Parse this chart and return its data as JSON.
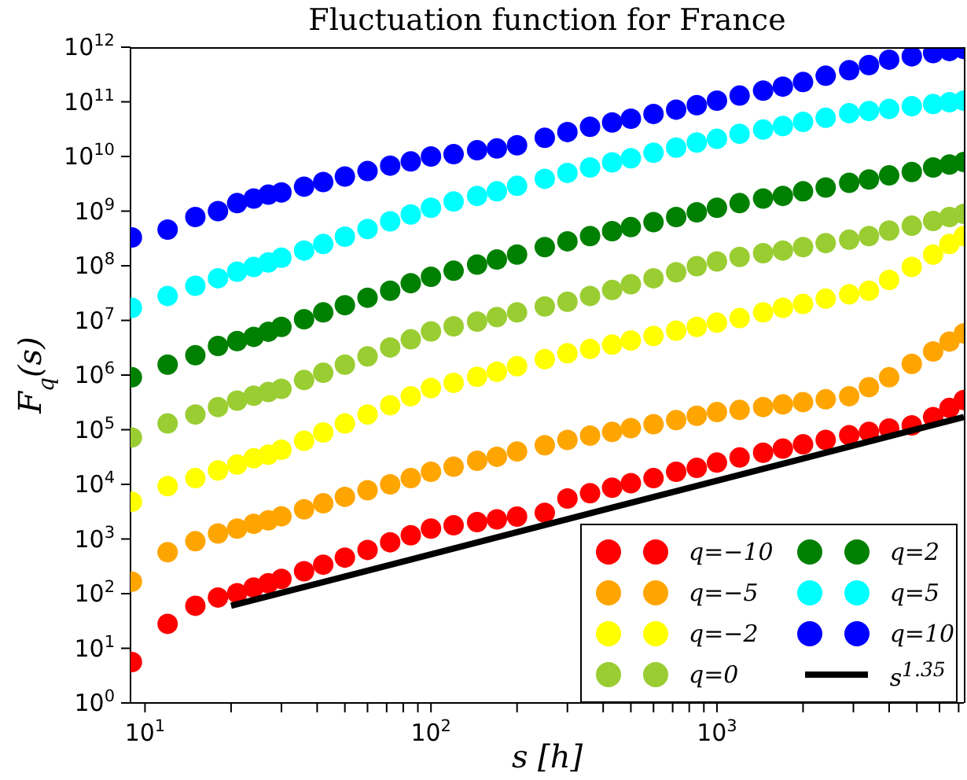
{
  "chart_data": {
    "type": "scatter",
    "title": "Fluctuation function for France",
    "xlabel": "s [h]",
    "ylabel": "F$_{q}$(s)",
    "log": "xy",
    "marker": "circle",
    "legend": "bottom right",
    "xlim": [
      8.9,
      7300
    ],
    "ylim": [
      1,
      1000000000000.0
    ],
    "xticks": [
      {
        "value": 10,
        "label": "10$^{1}$"
      },
      {
        "value": 20,
        "label": null
      },
      {
        "value": 30,
        "label": null
      },
      {
        "value": 40,
        "label": null
      },
      {
        "value": 50,
        "label": null
      },
      {
        "value": 60,
        "label": null
      },
      {
        "value": 70,
        "label": null
      },
      {
        "value": 80,
        "label": null
      },
      {
        "value": 90,
        "label": null
      },
      {
        "value": 100,
        "label": "10$^{2}$"
      },
      {
        "value": 200,
        "label": null
      },
      {
        "value": 300,
        "label": null
      },
      {
        "value": 400,
        "label": null
      },
      {
        "value": 500,
        "label": null
      },
      {
        "value": 600,
        "label": null
      },
      {
        "value": 700,
        "label": null
      },
      {
        "value": 800,
        "label": null
      },
      {
        "value": 900,
        "label": null
      },
      {
        "value": 1000,
        "label": "10$^{3}$"
      },
      {
        "value": 2000,
        "label": null
      },
      {
        "value": 3000,
        "label": null
      },
      {
        "value": 4000,
        "label": null
      },
      {
        "value": 5000,
        "label": null
      },
      {
        "value": 6000,
        "label": null
      },
      {
        "value": 7000,
        "label": null
      }
    ],
    "yticks": [
      {
        "value": 1,
        "label": "10$^{0}$"
      },
      {
        "value": 10,
        "label": "10$^{1}$"
      },
      {
        "value": 100,
        "label": "10$^{2}$"
      },
      {
        "value": 1000,
        "label": "10$^{3}$"
      },
      {
        "value": 10000.0,
        "label": "10$^{4}$"
      },
      {
        "value": 100000.0,
        "label": "10$^{5}$"
      },
      {
        "value": 1000000.0,
        "label": "10$^{6}$"
      },
      {
        "value": 10000000.0,
        "label": "10$^{7}$"
      },
      {
        "value": 100000000.0,
        "label": "10$^{8}$"
      },
      {
        "value": 1000000000.0,
        "label": "10$^{9}$"
      },
      {
        "value": 10000000000.0,
        "label": "10$^{10}$"
      },
      {
        "value": 100000000000.0,
        "label": "10$^{11}$"
      },
      {
        "value": 1000000000000.0,
        "label": "10$^{12}$"
      }
    ],
    "x": [
      9,
      12,
      15,
      18,
      21,
      24,
      27,
      30,
      36,
      42,
      50,
      60,
      72,
      85,
      100,
      120,
      145,
      170,
      200,
      250,
      300,
      360,
      430,
      500,
      600,
      720,
      850,
      1000,
      1200,
      1450,
      1700,
      2000,
      2400,
      2900,
      3400,
      4000,
      4800,
      5700,
      6500,
      7300
    ],
    "series": [
      {
        "name": "q=−10",
        "color": "#ff0000",
        "values": [
          5.6,
          28,
          60,
          85,
          102,
          129,
          155,
          186,
          257,
          339,
          457,
          631,
          871,
          1170,
          1550,
          1780,
          2040,
          2290,
          2570,
          3020,
          5500,
          6900,
          8700,
          10500.0,
          13000.0,
          17000.0,
          20000.0,
          25000.0,
          31000.0,
          38000.0,
          45000.0,
          54000.0,
          65000.0,
          79000.0,
          91000.0,
          105000.0,
          120000.0,
          170000.0,
          250000.0,
          350000.0
        ]
      },
      {
        "name": "q=−5",
        "color": "#ffa500",
        "values": [
          166,
          575,
          910,
          1260,
          1550,
          1900,
          2200,
          2600,
          3500,
          4500,
          5900,
          7800,
          10000.0,
          13000.0,
          17000.0,
          21000.0,
          27000.0,
          32000.0,
          40000.0,
          52000.0,
          65000.0,
          78000.0,
          91000.0,
          107000.0,
          126000.0,
          150000.0,
          180000.0,
          210000.0,
          230000.0,
          260000.0,
          290000.0,
          320000.0,
          360000.0,
          410000.0,
          600000.0,
          910000.0,
          1600000.0,
          2700000.0,
          4100000.0,
          5800000.0
        ]
      },
      {
        "name": "q=−2",
        "color": "#ffff00",
        "values": [
          4800.0,
          9300.0,
          13000.0,
          18000.0,
          23000.0,
          30000.0,
          35000.0,
          43000.0,
          63000.0,
          89000.0,
          130000.0,
          190000.0,
          280000.0,
          410000.0,
          580000.0,
          720000.0,
          930000.0,
          1150000.0,
          1450000.0,
          1950000.0,
          2500000.0,
          3000000.0,
          3600000.0,
          4300000.0,
          5200000.0,
          6500000.0,
          7600000.0,
          9100000.0,
          11000000.0,
          14000000.0,
          17000000.0,
          20000000.0,
          25000000.0,
          30000000.0,
          35000000.0,
          55000000.0,
          95000000.0,
          160000000.0,
          250000000.0,
          350000000.0
        ]
      },
      {
        "name": "q=0",
        "color": "#9acd32",
        "values": [
          72000.0,
          130000.0,
          190000.0,
          260000.0,
          340000.0,
          420000.0,
          490000.0,
          560000.0,
          810000.0,
          1100000.0,
          1550000.0,
          2200000.0,
          3200000.0,
          4500000.0,
          6300000.0,
          7800000.0,
          9500000.0,
          11500000.0,
          14000000.0,
          18000000.0,
          22000000.0,
          28000000.0,
          36000000.0,
          46000000.0,
          59000000.0,
          76000000.0,
          98000000.0,
          120000000.0,
          145000000.0,
          170000000.0,
          190000000.0,
          220000000.0,
          260000000.0,
          300000000.0,
          350000000.0,
          440000000.0,
          540000000.0,
          660000000.0,
          780000000.0,
          890000000.0
        ]
      },
      {
        "name": "q=2",
        "color": "#008000",
        "values": [
          910000.0,
          1550000.0,
          2300000.0,
          3400000.0,
          4200000.0,
          5000000.0,
          6200000.0,
          7600000.0,
          10500000.0,
          14000000.0,
          19000000.0,
          26000000.0,
          35000000.0,
          48000000.0,
          63000000.0,
          81000000.0,
          105000000.0,
          130000000.0,
          160000000.0,
          220000000.0,
          280000000.0,
          350000000.0,
          430000000.0,
          510000000.0,
          630000000.0,
          780000000.0,
          950000000.0,
          1150000000.0,
          1400000000.0,
          1700000000.0,
          1900000000.0,
          2300000000.0,
          2700000000.0,
          3300000000.0,
          3800000000.0,
          4500000000.0,
          5200000000.0,
          6300000000.0,
          7100000000.0,
          7900000000.0
        ]
      },
      {
        "name": "q=5",
        "color": "#00ffff",
        "values": [
          17000000.0,
          28000000.0,
          43000000.0,
          59000000.0,
          78000000.0,
          95000000.0,
          115000000.0,
          140000000.0,
          190000000.0,
          250000000.0,
          340000000.0,
          470000000.0,
          650000000.0,
          870000000.0,
          1150000000.0,
          1500000000.0,
          1900000000.0,
          2300000000.0,
          2900000000.0,
          3900000000.0,
          5000000000.0,
          6300000000.0,
          7800000000.0,
          9300000000.0,
          11700000000.0,
          14500000000.0,
          18000000000.0,
          21000000000.0,
          26000000000.0,
          31000000000.0,
          36000000000.0,
          43000000000.0,
          51000000000.0,
          62000000000.0,
          68000000000.0,
          74000000000.0,
          83000000000.0,
          91000000000.0,
          98000000000.0,
          105000000000.0
        ]
      },
      {
        "name": "q=10",
        "color": "#0000ff",
        "values": [
          330000000.0,
          460000000.0,
          780000000.0,
          1000000000.0,
          1400000000.0,
          1700000000.0,
          2000000000.0,
          2200000000.0,
          2800000000.0,
          3400000000.0,
          4300000000.0,
          5400000000.0,
          6800000000.0,
          8100000000.0,
          10000000000.0,
          11000000000.0,
          13000000000.0,
          14000000000.0,
          16000000000.0,
          22000000000.0,
          28000000000.0,
          35000000000.0,
          42000000000.0,
          49000000000.0,
          60000000000.0,
          72000000000.0,
          87000000000.0,
          105000000000.0,
          130000000000.0,
          160000000000.0,
          190000000000.0,
          230000000000.0,
          300000000000.0,
          380000000000.0,
          470000000000.0,
          590000000000.0,
          680000000000.0,
          780000000000.0,
          850000000000.0,
          930000000000.0
        ]
      },
      {
        "name": "s$^{1.35}$",
        "type": "line",
        "marker": "none",
        "color": "#000000",
        "x": [
          20,
          7300
        ],
        "values": [
          60,
          170000.0
        ]
      }
    ]
  }
}
